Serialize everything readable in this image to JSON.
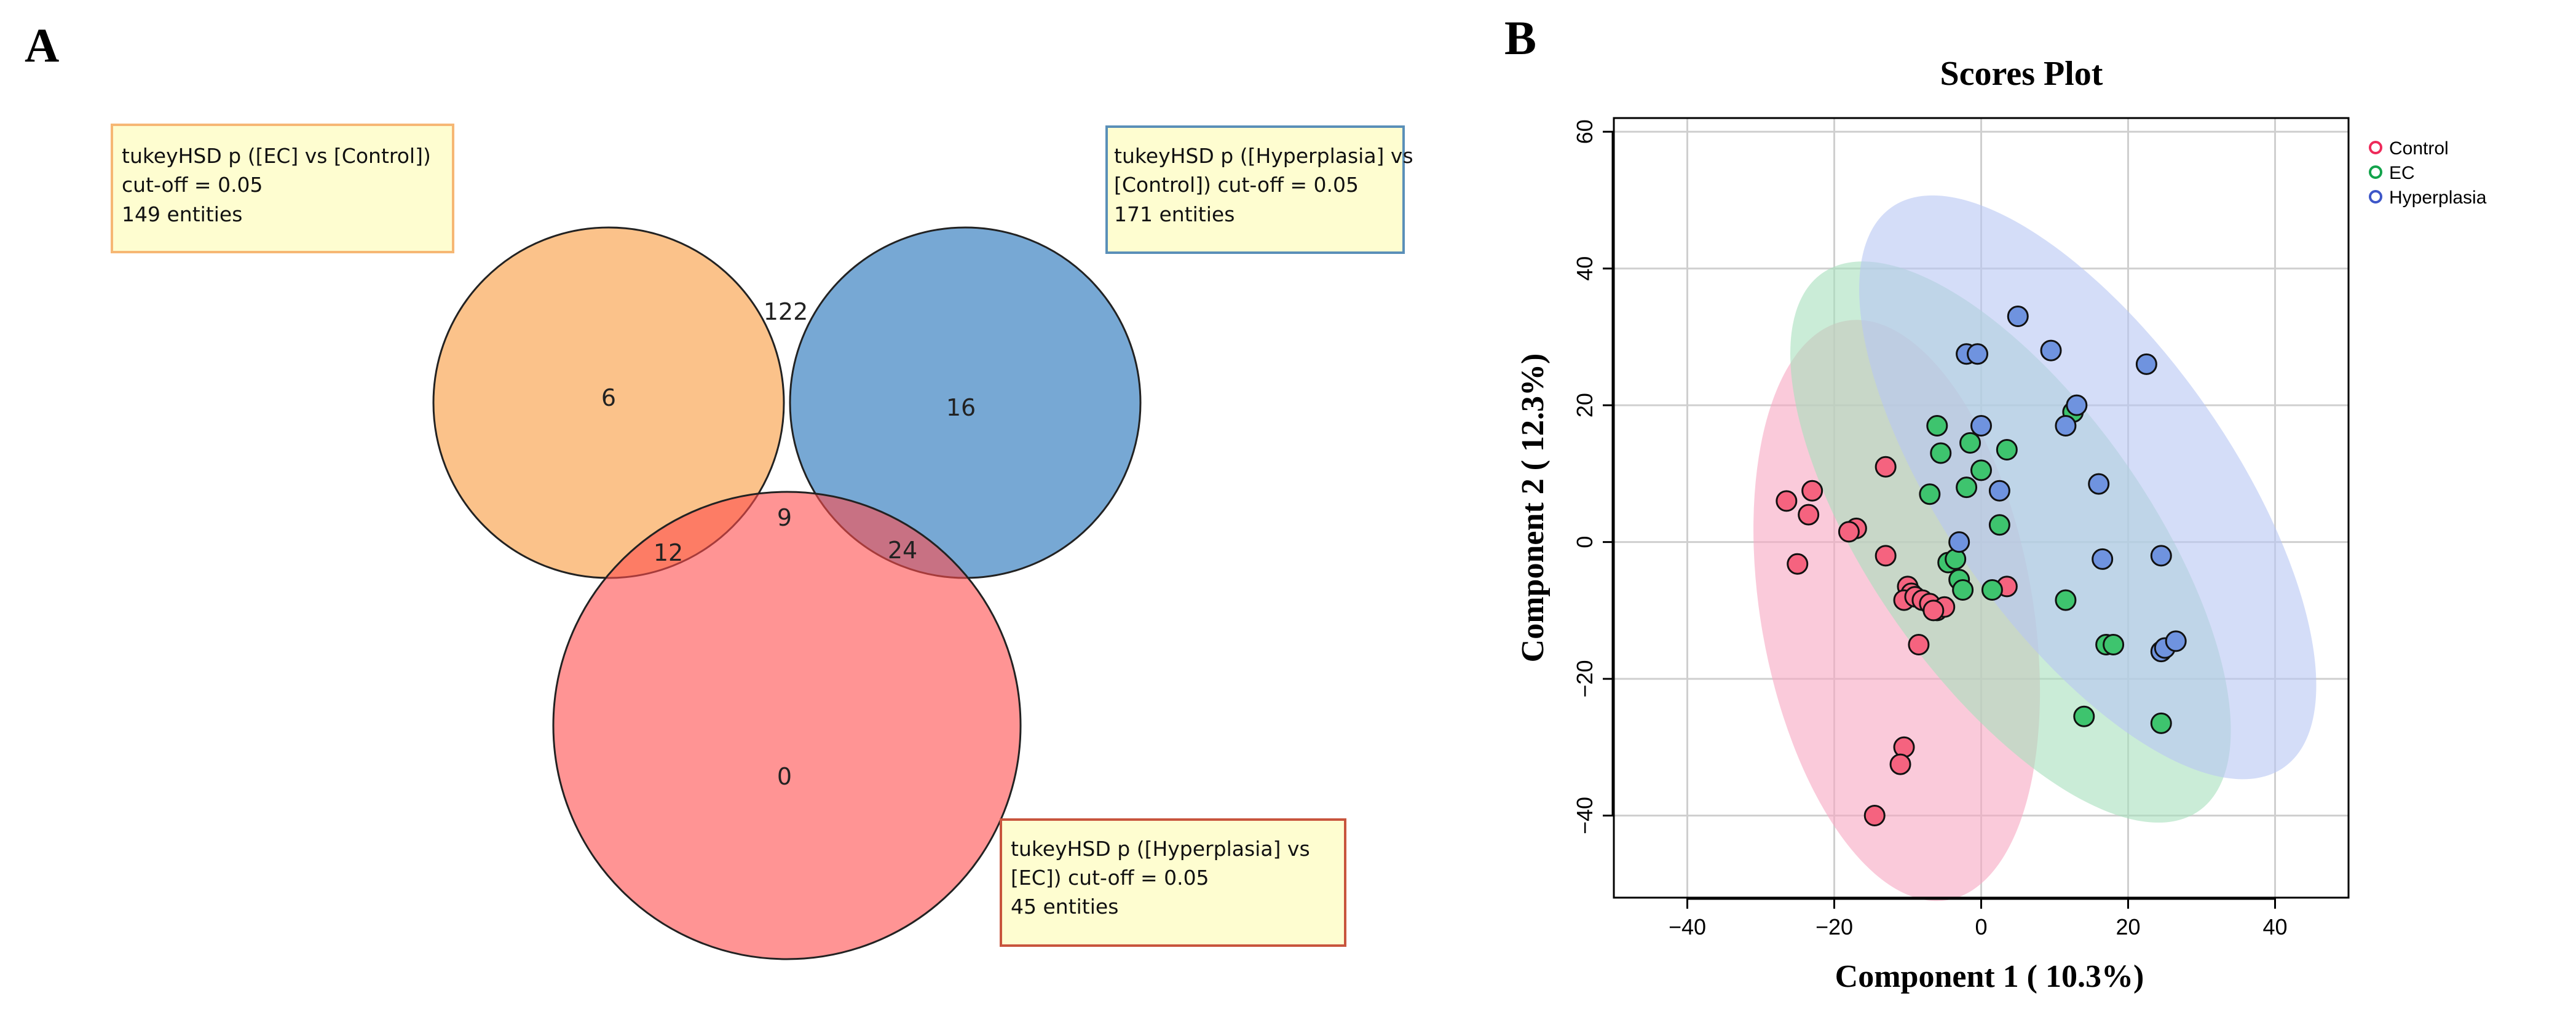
{
  "panel_a": {
    "letter": "A",
    "sets": [
      {
        "key": "ec_vs_control",
        "color": "#fbbb7d",
        "line1": "tukeyHSD p ([EC] vs [Control])",
        "line2": "cut-off = 0.05",
        "line3": "149 entities",
        "border": "#f6b774"
      },
      {
        "key": "hyp_vs_control",
        "color": "#4a8bc5",
        "line1": "tukeyHSD p ([Hyperplasia] vs",
        "line2": "[Control]) cut-off = 0.05",
        "line3": "171 entities",
        "border": "#5a8fb8"
      },
      {
        "key": "hyp_vs_ec",
        "color": "#ff4d4d",
        "line1": "tukeyHSD p ([Hyperplasia] vs",
        "line2": "[EC]) cut-off = 0.05",
        "line3": "45 entities",
        "border": "#c8553d"
      }
    ],
    "regions": {
      "only_ec_control": "6",
      "ec_control_and_hyp_control": "122",
      "only_hyp_control": "16",
      "ec_control_and_hyp_ec": "12",
      "all_three": "9",
      "hyp_control_and_hyp_ec": "24",
      "only_hyp_ec": "0"
    }
  },
  "chart_data": {
    "type": "scatter",
    "panel_letter": "B",
    "title": "Scores Plot",
    "xlabel": "Component 1 ( 10.3%)",
    "ylabel": "Component 2 ( 12.3%)",
    "xlim": [
      -50,
      50
    ],
    "ylim": [
      -52,
      62
    ],
    "xticks": [
      -40,
      -20,
      0,
      20,
      40
    ],
    "yticks": [
      -40,
      -20,
      0,
      20,
      40,
      60
    ],
    "xtick_labels": [
      "−40",
      "−20",
      "0",
      "20",
      "40"
    ],
    "ytick_labels": [
      "−40",
      "−20",
      "0",
      "20",
      "40",
      "60"
    ],
    "grid": true,
    "legend_position": "top-right",
    "series": [
      {
        "name": "Control",
        "color": "#ee2a5a",
        "fill": "#f5637f",
        "ellipse": {
          "cx": -11.5,
          "cy": -10,
          "rx": 18.5,
          "ry": 43,
          "angle_deg": 10,
          "fill": "#f7a6c1"
        },
        "points": [
          [
            -26.5,
            6
          ],
          [
            -23,
            7.5
          ],
          [
            -23.5,
            4
          ],
          [
            -17,
            2
          ],
          [
            -18,
            1.5
          ],
          [
            -25,
            -3.2
          ],
          [
            -13,
            11
          ],
          [
            -13,
            -2
          ],
          [
            -10,
            -6.5
          ],
          [
            -9.5,
            -7.5
          ],
          [
            -10.5,
            -8.5
          ],
          [
            -9,
            -8
          ],
          [
            -8.5,
            -15
          ],
          [
            -8,
            -8.5
          ],
          [
            -7,
            -9
          ],
          [
            -6,
            -10
          ],
          [
            -5,
            -9.5
          ],
          [
            -6.5,
            -10
          ],
          [
            3.5,
            -6.5
          ],
          [
            -10.5,
            -30
          ],
          [
            -11,
            -32.5
          ],
          [
            -14.5,
            -40
          ]
        ]
      },
      {
        "name": "EC",
        "color": "#12a34b",
        "fill": "#3ec46e",
        "ellipse": {
          "cx": 4,
          "cy": 0,
          "rx": 19,
          "ry": 48,
          "angle_deg": 35,
          "fill": "#a6e0bc"
        },
        "points": [
          [
            -7,
            7
          ],
          [
            -6,
            17
          ],
          [
            -5.5,
            13
          ],
          [
            -4.5,
            -3
          ],
          [
            -3.5,
            -2.5
          ],
          [
            -3,
            -5.5
          ],
          [
            -2.5,
            -7
          ],
          [
            -2,
            8
          ],
          [
            -1.5,
            14.5
          ],
          [
            0,
            10.5
          ],
          [
            1.5,
            -7
          ],
          [
            2.5,
            2.5
          ],
          [
            3.5,
            13.5
          ],
          [
            11.5,
            -8.5
          ],
          [
            12.5,
            19
          ],
          [
            17,
            -15
          ],
          [
            18,
            -15
          ],
          [
            14,
            -25.5
          ],
          [
            24.5,
            -26.5
          ]
        ]
      },
      {
        "name": "Hyperplasia",
        "color": "#3d56c8",
        "fill": "#6f93df",
        "ellipse": {
          "cx": 14.5,
          "cy": 8,
          "rx": 19.5,
          "ry": 50,
          "angle_deg": 35,
          "fill": "#b7c6f3"
        },
        "points": [
          [
            -3,
            0
          ],
          [
            -2,
            27.5
          ],
          [
            -0.5,
            27.5
          ],
          [
            0,
            17
          ],
          [
            2.5,
            7.5
          ],
          [
            5,
            33
          ],
          [
            9.5,
            28
          ],
          [
            11.5,
            17
          ],
          [
            13,
            20
          ],
          [
            16,
            8.5
          ],
          [
            16.5,
            -2.5
          ],
          [
            22.5,
            26
          ],
          [
            24.5,
            -2
          ],
          [
            24.5,
            -16
          ],
          [
            25,
            -15.5
          ],
          [
            26.5,
            -14.5
          ]
        ]
      }
    ]
  }
}
